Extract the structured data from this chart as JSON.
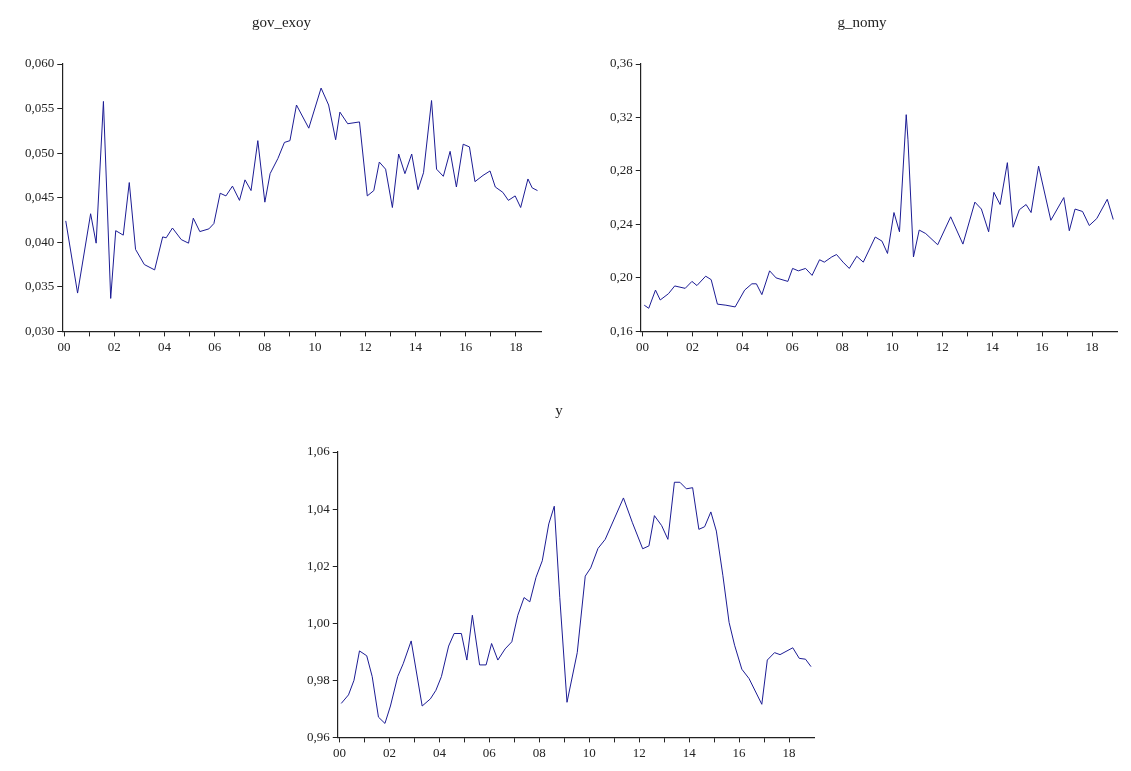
{
  "chart_data": [
    {
      "type": "line",
      "title": "gov_exoy",
      "marker": "none",
      "color": "#1c1c94",
      "x": [
        2000.07,
        2000.54,
        2001.06,
        2001.28,
        2001.57,
        2001.86,
        2002.06,
        2002.36,
        2002.6,
        2002.85,
        2003.2,
        2003.61,
        2003.93,
        2004.07,
        2004.32,
        2004.67,
        2004.96,
        2005.15,
        2005.41,
        2005.77,
        2005.97,
        2006.22,
        2006.45,
        2006.71,
        2006.99,
        2007.21,
        2007.45,
        2007.72,
        2008.0,
        2008.21,
        2008.52,
        2008.78,
        2009.0,
        2009.26,
        2009.75,
        2010.24,
        2010.54,
        2010.82,
        2010.99,
        2011.3,
        2011.77,
        2012.08,
        2012.34,
        2012.56,
        2012.81,
        2013.08,
        2013.33,
        2013.58,
        2013.85,
        2014.1,
        2014.32,
        2014.64,
        2014.84,
        2015.11,
        2015.38,
        2015.63,
        2015.9,
        2016.15,
        2016.37,
        2016.69,
        2016.97,
        2017.18,
        2017.48,
        2017.7,
        2017.97,
        2018.19,
        2018.48,
        2018.65,
        2018.86
      ],
      "values": [
        0.0424,
        0.0343,
        0.0432,
        0.0399,
        0.0558,
        0.0337,
        0.0413,
        0.0408,
        0.0467,
        0.0392,
        0.0375,
        0.0369,
        0.0406,
        0.0405,
        0.0416,
        0.0403,
        0.0399,
        0.0427,
        0.0412,
        0.0415,
        0.0421,
        0.0455,
        0.0452,
        0.0463,
        0.0447,
        0.047,
        0.0458,
        0.0514,
        0.0445,
        0.0477,
        0.0494,
        0.0512,
        0.0514,
        0.0554,
        0.0528,
        0.0573,
        0.0554,
        0.0515,
        0.0546,
        0.0533,
        0.0535,
        0.0452,
        0.0458,
        0.049,
        0.0482,
        0.0439,
        0.0499,
        0.0477,
        0.0499,
        0.0459,
        0.0478,
        0.0559,
        0.0482,
        0.0474,
        0.0502,
        0.0462,
        0.051,
        0.0507,
        0.0468,
        0.0475,
        0.048,
        0.0462,
        0.0456,
        0.0447,
        0.0452,
        0.0439,
        0.0471,
        0.0461,
        0.0458
      ],
      "xlim": [
        1999.93,
        2019.0
      ],
      "xticks": [
        {
          "value": 2000,
          "label": "00"
        },
        {
          "value": 2001,
          "label": null
        },
        {
          "value": 2002,
          "label": "02"
        },
        {
          "value": 2003,
          "label": null
        },
        {
          "value": 2004,
          "label": "04"
        },
        {
          "value": 2005,
          "label": null
        },
        {
          "value": 2006,
          "label": "06"
        },
        {
          "value": 2007,
          "label": null
        },
        {
          "value": 2008,
          "label": "08"
        },
        {
          "value": 2009,
          "label": null
        },
        {
          "value": 2010,
          "label": "10"
        },
        {
          "value": 2011,
          "label": null
        },
        {
          "value": 2012,
          "label": "12"
        },
        {
          "value": 2013,
          "label": null
        },
        {
          "value": 2014,
          "label": "14"
        },
        {
          "value": 2015,
          "label": null
        },
        {
          "value": 2016,
          "label": "16"
        },
        {
          "value": 2017,
          "label": null
        },
        {
          "value": 2018,
          "label": "18"
        }
      ],
      "ylim": [
        0.03,
        0.06
      ],
      "yticks": [
        {
          "value": 0.03,
          "label": "0,030"
        },
        {
          "value": 0.035,
          "label": "0,035"
        },
        {
          "value": 0.04,
          "label": "0,040"
        },
        {
          "value": 0.045,
          "label": "0,045"
        },
        {
          "value": 0.05,
          "label": "0,050"
        },
        {
          "value": 0.055,
          "label": "0,055"
        },
        {
          "value": 0.06,
          "label": "0,060"
        }
      ]
    },
    {
      "type": "line",
      "title": "g_nomy",
      "marker": "none",
      "color": "#1c1c94",
      "x": [
        2000.07,
        2000.25,
        2000.52,
        2000.71,
        2001.04,
        2001.29,
        2001.71,
        2001.98,
        2002.18,
        2002.53,
        2002.75,
        2003.0,
        2003.34,
        2003.71,
        2004.09,
        2004.38,
        2004.56,
        2004.78,
        2005.09,
        2005.35,
        2005.82,
        2006.01,
        2006.24,
        2006.53,
        2006.79,
        2007.09,
        2007.28,
        2007.58,
        2007.77,
        2008.03,
        2008.28,
        2008.58,
        2008.84,
        2009.32,
        2009.59,
        2009.81,
        2010.07,
        2010.29,
        2010.56,
        2010.63,
        2010.85,
        2011.08,
        2011.34,
        2011.82,
        2012.34,
        2012.83,
        2013.31,
        2013.57,
        2013.86,
        2014.07,
        2014.32,
        2014.61,
        2014.84,
        2015.09,
        2015.36,
        2015.56,
        2015.86,
        2016.35,
        2016.87,
        2017.09,
        2017.32,
        2017.62,
        2017.89,
        2018.19,
        2018.61,
        2018.85
      ],
      "values": [
        0.1796,
        0.1773,
        0.1909,
        0.1835,
        0.1882,
        0.194,
        0.1922,
        0.1974,
        0.1943,
        0.2013,
        0.1987,
        0.1804,
        0.1796,
        0.1783,
        0.1909,
        0.1956,
        0.1956,
        0.1875,
        0.2053,
        0.2,
        0.1974,
        0.2071,
        0.2053,
        0.2071,
        0.2019,
        0.2136,
        0.2118,
        0.2157,
        0.2175,
        0.2118,
        0.2071,
        0.2162,
        0.2118,
        0.2306,
        0.2275,
        0.2183,
        0.2489,
        0.2345,
        0.3221,
        0.3033,
        0.2157,
        0.2358,
        0.2332,
        0.2248,
        0.2457,
        0.2253,
        0.2567,
        0.2515,
        0.2345,
        0.264,
        0.2549,
        0.2862,
        0.2379,
        0.251,
        0.2549,
        0.2489,
        0.2836,
        0.2431,
        0.2601,
        0.2353,
        0.2515,
        0.2497,
        0.2392,
        0.2444,
        0.2588,
        0.2437
      ],
      "xlim": [
        1999.93,
        2019.0
      ],
      "xticks": [
        {
          "value": 2000,
          "label": "00"
        },
        {
          "value": 2001,
          "label": null
        },
        {
          "value": 2002,
          "label": "02"
        },
        {
          "value": 2003,
          "label": null
        },
        {
          "value": 2004,
          "label": "04"
        },
        {
          "value": 2005,
          "label": null
        },
        {
          "value": 2006,
          "label": "06"
        },
        {
          "value": 2007,
          "label": null
        },
        {
          "value": 2008,
          "label": "08"
        },
        {
          "value": 2009,
          "label": null
        },
        {
          "value": 2010,
          "label": "10"
        },
        {
          "value": 2011,
          "label": null
        },
        {
          "value": 2012,
          "label": "12"
        },
        {
          "value": 2013,
          "label": null
        },
        {
          "value": 2014,
          "label": "14"
        },
        {
          "value": 2015,
          "label": null
        },
        {
          "value": 2016,
          "label": "16"
        },
        {
          "value": 2017,
          "label": null
        },
        {
          "value": 2018,
          "label": "18"
        }
      ],
      "ylim": [
        0.16,
        0.36
      ],
      "yticks": [
        {
          "value": 0.16,
          "label": "0,16"
        },
        {
          "value": 0.2,
          "label": "0,20"
        },
        {
          "value": 0.24,
          "label": "0,24"
        },
        {
          "value": 0.28,
          "label": "0,28"
        },
        {
          "value": 0.32,
          "label": "0,32"
        },
        {
          "value": 0.36,
          "label": "0,36"
        }
      ]
    },
    {
      "type": "line",
      "title": "y",
      "marker": "none",
      "color": "#1c1c94",
      "x": [
        2000.07,
        2000.36,
        2000.58,
        2000.8,
        2001.09,
        2001.31,
        2001.56,
        2001.82,
        2002.04,
        2002.33,
        2002.55,
        2002.87,
        2003.31,
        2003.64,
        2003.86,
        2004.08,
        2004.37,
        2004.59,
        2004.88,
        2005.1,
        2005.32,
        2005.61,
        2005.87,
        2006.09,
        2006.34,
        2006.63,
        2006.9,
        2007.14,
        2007.39,
        2007.62,
        2007.87,
        2008.12,
        2008.38,
        2008.6,
        2008.82,
        2009.11,
        2009.52,
        2009.84,
        2010.06,
        2010.35,
        2010.64,
        2011.37,
        2011.73,
        2012.14,
        2012.39,
        2012.61,
        2012.9,
        2013.15,
        2013.41,
        2013.63,
        2013.89,
        2014.14,
        2014.39,
        2014.62,
        2014.87,
        2015.09,
        2015.35,
        2015.6,
        2015.82,
        2016.11,
        2016.4,
        2016.91,
        2017.13,
        2017.42,
        2017.64,
        2018.15,
        2018.41,
        2018.66,
        2018.88
      ],
      "values": [
        0.9719,
        0.9749,
        0.98,
        0.9903,
        0.9886,
        0.9813,
        0.9671,
        0.9649,
        0.971,
        0.9813,
        0.9858,
        0.9938,
        0.971,
        0.9735,
        0.9765,
        0.9813,
        0.992,
        0.9964,
        0.9964,
        0.9871,
        1.0028,
        0.9854,
        0.9854,
        0.9929,
        0.9871,
        0.991,
        0.9935,
        1.0028,
        1.009,
        1.0075,
        1.0161,
        1.0219,
        1.0348,
        1.041,
        1.009,
        0.9723,
        0.9897,
        1.0165,
        1.0194,
        1.0262,
        1.0294,
        1.0439,
        1.0352,
        1.0261,
        1.0271,
        1.0377,
        1.0342,
        1.0294,
        1.0494,
        1.0494,
        1.0471,
        1.0475,
        1.0329,
        1.0338,
        1.039,
        1.0323,
        1.0168,
        1.0003,
        0.9923,
        0.9839,
        0.9806,
        0.9716,
        0.9871,
        0.9897,
        0.989,
        0.9914,
        0.9877,
        0.9874,
        0.9848
      ],
      "xlim": [
        1999.93,
        2019.0
      ],
      "xticks": [
        {
          "value": 2000,
          "label": "00"
        },
        {
          "value": 2001,
          "label": null
        },
        {
          "value": 2002,
          "label": "02"
        },
        {
          "value": 2003,
          "label": null
        },
        {
          "value": 2004,
          "label": "04"
        },
        {
          "value": 2005,
          "label": null
        },
        {
          "value": 2006,
          "label": "06"
        },
        {
          "value": 2007,
          "label": null
        },
        {
          "value": 2008,
          "label": "08"
        },
        {
          "value": 2009,
          "label": null
        },
        {
          "value": 2010,
          "label": "10"
        },
        {
          "value": 2011,
          "label": null
        },
        {
          "value": 2012,
          "label": "12"
        },
        {
          "value": 2013,
          "label": null
        },
        {
          "value": 2014,
          "label": "14"
        },
        {
          "value": 2015,
          "label": null
        },
        {
          "value": 2016,
          "label": "16"
        },
        {
          "value": 2017,
          "label": null
        },
        {
          "value": 2018,
          "label": "18"
        }
      ],
      "ylim": [
        0.96,
        1.06
      ],
      "yticks": [
        {
          "value": 0.96,
          "label": "0,96"
        },
        {
          "value": 0.98,
          "label": "0,98"
        },
        {
          "value": 1.0,
          "label": "1,00"
        },
        {
          "value": 1.02,
          "label": "1,02"
        },
        {
          "value": 1.04,
          "label": "1,04"
        },
        {
          "value": 1.06,
          "label": "1,06"
        }
      ]
    }
  ]
}
